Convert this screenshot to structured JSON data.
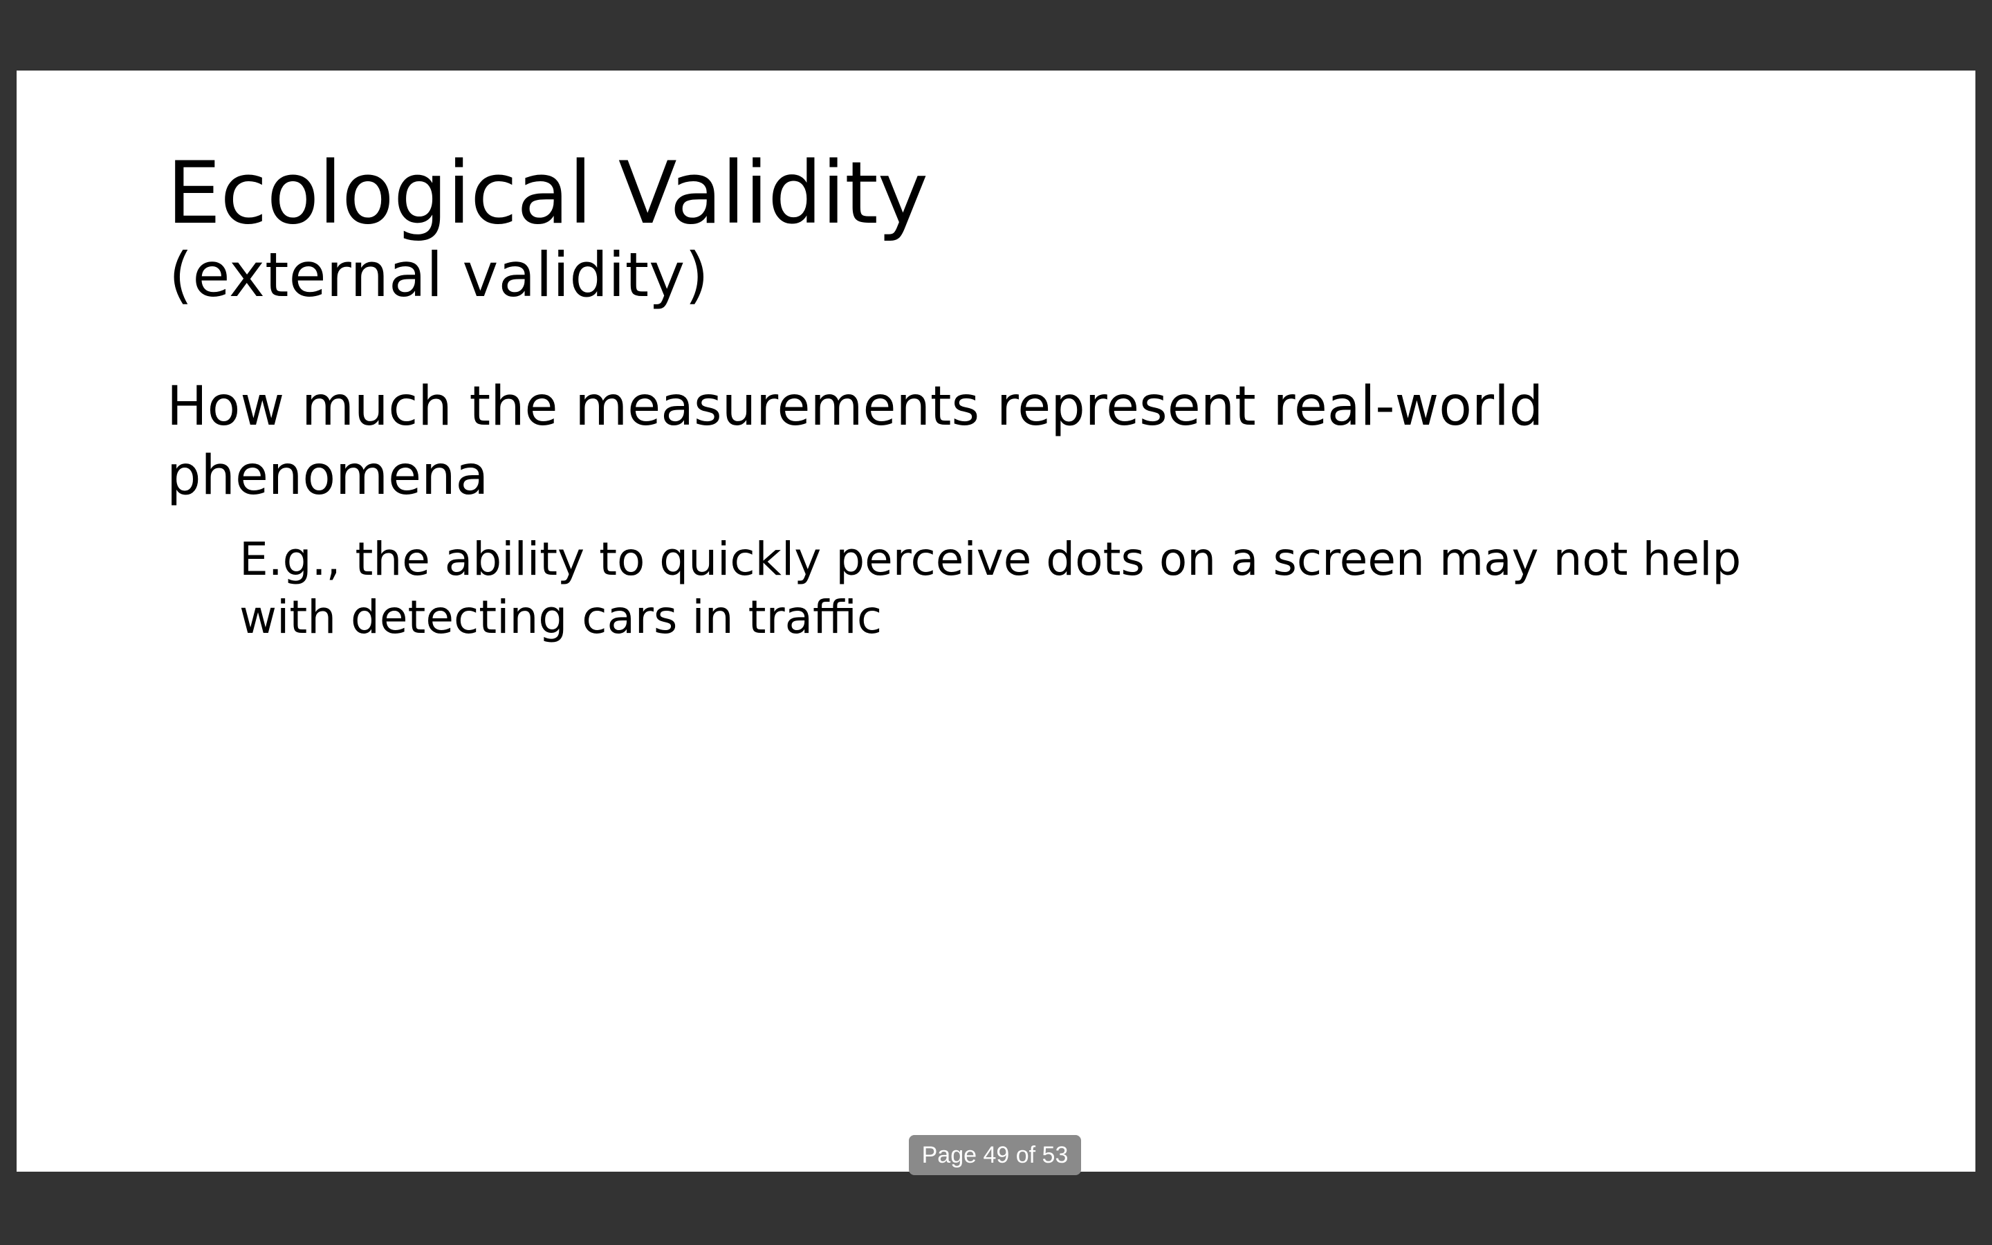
{
  "slide": {
    "title": "Ecological Validity",
    "subtitle": "(external validity)",
    "bullets": [
      "How much the measurements represent real-world phenomena",
      "E.g., the ability to quickly perceive dots on a screen may not help with detecting cars in traffic"
    ]
  },
  "page_indicator": {
    "text": "Page 49 of 53",
    "current_page": 49,
    "total_pages": 53
  },
  "colors": {
    "viewer_background": "#333333",
    "slide_background": "#ffffff",
    "text": "#000000",
    "indicator_background": "#8a8a8a",
    "indicator_text": "#ffffff"
  }
}
